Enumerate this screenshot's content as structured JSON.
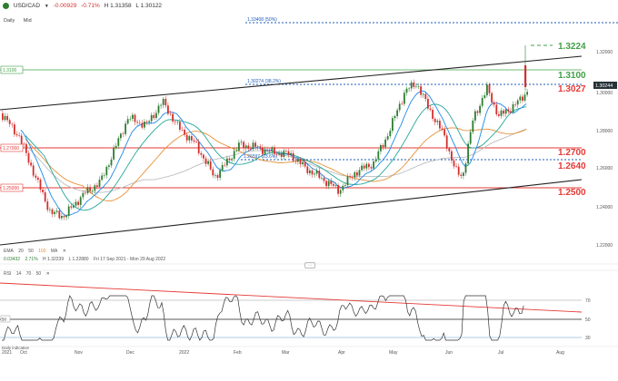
{
  "header": {
    "symbol": "USD/CAD",
    "change": "-0.00929",
    "change_pct": "-0.71%",
    "high": "H 1.31358",
    "low": "L 1.30122"
  },
  "subheader": {
    "timeframe": "Daily",
    "price_type": "Mid"
  },
  "price_chart": {
    "y_ticks": [
      "1.32000",
      "1.30000",
      "1.28000",
      "1.26000",
      "1.24000",
      "1.22000"
    ],
    "current_price": "1.30244",
    "line_labels": {
      "fib_50": "1.33408 (50%)",
      "fib_382": "1.30274 (38.2%)",
      "fib_236": "1.26597 (23.6%)",
      "left_13100": "1.3100",
      "left_12700": "1.27000",
      "left_12500": "1.25000"
    },
    "annotations": [
      "1.3224",
      "1.3100",
      "1.3027",
      "1.2700",
      "1.2640",
      "1.2500"
    ],
    "colors": {
      "support_resistance": "#e53935",
      "fib": "#1e5bb8",
      "channel": "#222222",
      "green_level": "#43a047",
      "bull_candle": "#2e7d32",
      "bear_candle": "#d32f2f",
      "ema20": "#1e88e5",
      "ema50": "#26a69a",
      "ema100": "#e69138",
      "ma": "#bdbdbd",
      "annotation_green": "#43a047",
      "annotation_red": "#e53935"
    }
  },
  "indicators": {
    "ema_label": "EMA",
    "ema_periods": [
      "20",
      "50",
      "100"
    ],
    "ma_label": "MA",
    "close_icon": "close-icon",
    "stat_change": "0.03432",
    "stat_pct": "2.71%",
    "stat_high": "H 1.32239",
    "stat_low": "L 1.22880",
    "date_range": "Fri 17 Sep 2021 - Mon 29 Aug 2022"
  },
  "rsi": {
    "label": "RSI",
    "params": [
      "14",
      "70",
      "50"
    ],
    "levels": [
      "70",
      "50",
      "30"
    ]
  },
  "x_axis": {
    "labels": [
      "2021",
      "Oct",
      "Nov",
      "Dec",
      "2022",
      "Feb",
      "Mar",
      "Apr",
      "May",
      "Jun",
      "Jul",
      "Aug"
    ]
  },
  "footer_text": "Daily indicative"
}
